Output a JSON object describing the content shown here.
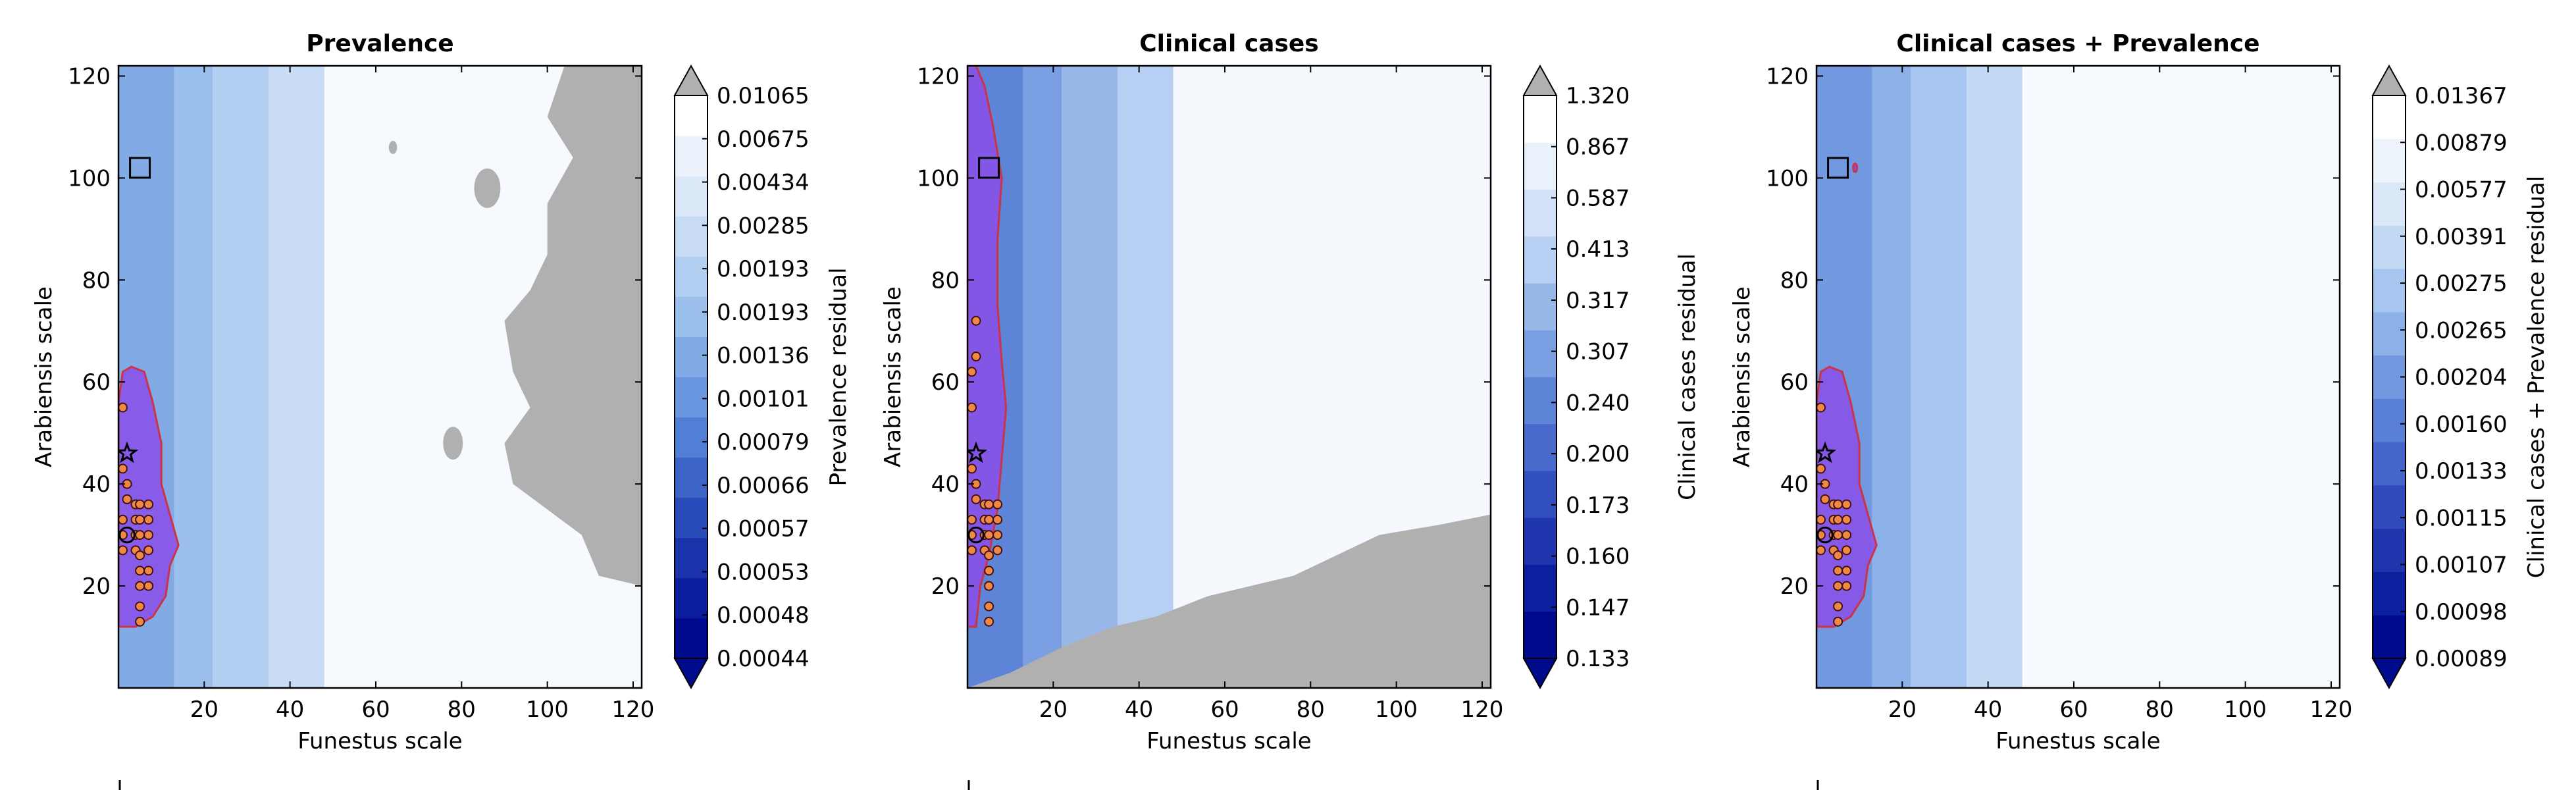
{
  "colors": {
    "grey_region": "#b0b0b0",
    "contour_line": "#cc3344",
    "best_fit_fill": "#8a4ee8"
  },
  "chart_data": [
    {
      "type": "heatmap",
      "title": "Prevalence",
      "xlabel": "Funestus scale",
      "ylabel": "Arabiensis scale",
      "xlim": [
        0,
        122
      ],
      "ylim": [
        0,
        122
      ],
      "xticks": [
        "20",
        "40",
        "60",
        "80",
        "100",
        "120"
      ],
      "yticks": [
        "20",
        "40",
        "60",
        "80",
        "100",
        "120"
      ],
      "colorbar": {
        "label": "Prevalence residual",
        "levels": [
          "0.00044",
          "0.00048",
          "0.00053",
          "0.00057",
          "0.00066",
          "0.00079",
          "0.00101",
          "0.00136",
          "0.00193",
          "0.00193",
          "0.00285",
          "0.00434",
          "0.00675",
          "0.01065"
        ],
        "colors": [
          "#000a8c",
          "#0a1d9c",
          "#1a33aa",
          "#2a4cba",
          "#3d65c8",
          "#527fd6",
          "#6997e0",
          "#82abe6",
          "#9bbfec",
          "#b2cff1",
          "#c8ddf5",
          "#dce9f8",
          "#ecf2fb",
          "#ffffff"
        ],
        "extend": "both"
      },
      "legend_placement": "bottom-left",
      "markers": {
        "star": [
          2,
          46
        ],
        "square": [
          5,
          102
        ],
        "circle_large": [
          2,
          30
        ],
        "circles_small": [
          [
            1,
            30
          ],
          [
            1,
            27
          ],
          [
            1,
            33
          ],
          [
            2,
            37
          ],
          [
            2,
            40
          ],
          [
            1,
            43
          ],
          [
            4,
            36
          ],
          [
            4,
            33
          ],
          [
            4,
            30
          ],
          [
            4,
            27
          ],
          [
            5,
            36
          ],
          [
            5,
            33
          ],
          [
            5,
            30
          ],
          [
            5,
            26
          ],
          [
            5,
            23
          ],
          [
            5,
            20
          ],
          [
            5,
            16
          ],
          [
            5,
            13
          ],
          [
            7,
            36
          ],
          [
            7,
            33
          ],
          [
            7,
            30
          ],
          [
            7,
            27
          ],
          [
            7,
            23
          ],
          [
            7,
            20
          ],
          [
            1,
            55
          ]
        ]
      }
    },
    {
      "type": "heatmap",
      "title": "Clinical cases",
      "xlabel": "Funestus scale",
      "ylabel": "Arabiensis scale",
      "xlim": [
        0,
        122
      ],
      "ylim": [
        0,
        122
      ],
      "xticks": [
        "20",
        "40",
        "60",
        "80",
        "100",
        "120"
      ],
      "yticks": [
        "20",
        "40",
        "60",
        "80",
        "100",
        "120"
      ],
      "colorbar": {
        "label": "Clinical cases residual",
        "levels": [
          "0.133",
          "0.147",
          "0.160",
          "0.173",
          "0.200",
          "0.240",
          "0.307",
          "0.317",
          "0.413",
          "0.587",
          "0.867",
          "1.320"
        ],
        "colors": [
          "#000a8c",
          "#0c1f9e",
          "#2036ae",
          "#324fbe",
          "#4769cc",
          "#5e84d8",
          "#7a9fe2",
          "#98b8ea",
          "#b6cff2",
          "#d2e1f7",
          "#e9f1fb",
          "#ffffff"
        ],
        "extend": "both"
      },
      "legend_placement": "bottom-left",
      "markers": {
        "star": [
          2,
          46
        ],
        "square": [
          5,
          102
        ],
        "circle_large": [
          2,
          30
        ],
        "circles_small": [
          [
            1,
            30
          ],
          [
            1,
            27
          ],
          [
            1,
            33
          ],
          [
            2,
            37
          ],
          [
            2,
            40
          ],
          [
            1,
            43
          ],
          [
            4,
            36
          ],
          [
            4,
            33
          ],
          [
            4,
            30
          ],
          [
            4,
            27
          ],
          [
            5,
            36
          ],
          [
            5,
            33
          ],
          [
            5,
            30
          ],
          [
            5,
            26
          ],
          [
            5,
            23
          ],
          [
            5,
            20
          ],
          [
            5,
            16
          ],
          [
            5,
            13
          ],
          [
            7,
            36
          ],
          [
            7,
            33
          ],
          [
            7,
            30
          ],
          [
            7,
            27
          ],
          [
            1,
            55
          ],
          [
            1,
            62
          ],
          [
            2,
            65
          ],
          [
            2,
            72
          ]
        ]
      }
    },
    {
      "type": "heatmap",
      "title": "Clinical cases + Prevalence",
      "xlabel": "Funestus scale",
      "ylabel": "Arabiensis scale",
      "xlim": [
        0,
        122
      ],
      "ylim": [
        0,
        122
      ],
      "xticks": [
        "20",
        "40",
        "60",
        "80",
        "100",
        "120"
      ],
      "yticks": [
        "20",
        "40",
        "60",
        "80",
        "100",
        "120"
      ],
      "colorbar": {
        "label": "Clinical cases + Prevalence residual",
        "levels": [
          "0.00089",
          "0.00098",
          "0.00107",
          "0.00115",
          "0.00133",
          "0.00160",
          "0.00204",
          "0.00265",
          "0.00275",
          "0.00391",
          "0.00577",
          "0.00879",
          "0.01367"
        ],
        "colors": [
          "#000a8c",
          "#0c1f9e",
          "#1f34ad",
          "#304cbc",
          "#4466ca",
          "#5a80d6",
          "#7299e0",
          "#8cb0e8",
          "#a7c6ef",
          "#c2daf4",
          "#dae8f8",
          "#eef4fc",
          "#ffffff"
        ],
        "extend": "both"
      },
      "legend_placement": "bottom-left",
      "markers": {
        "star": [
          2,
          46
        ],
        "square": [
          5,
          102
        ],
        "circle_large": [
          2,
          30
        ],
        "circles_small": [
          [
            1,
            30
          ],
          [
            1,
            27
          ],
          [
            1,
            33
          ],
          [
            2,
            37
          ],
          [
            2,
            40
          ],
          [
            1,
            43
          ],
          [
            4,
            36
          ],
          [
            4,
            33
          ],
          [
            4,
            30
          ],
          [
            4,
            27
          ],
          [
            5,
            36
          ],
          [
            5,
            33
          ],
          [
            5,
            30
          ],
          [
            5,
            26
          ],
          [
            5,
            23
          ],
          [
            5,
            20
          ],
          [
            5,
            16
          ],
          [
            5,
            13
          ],
          [
            7,
            36
          ],
          [
            7,
            33
          ],
          [
            7,
            30
          ],
          [
            7,
            27
          ],
          [
            7,
            23
          ],
          [
            7,
            20
          ],
          [
            1,
            55
          ]
        ]
      }
    }
  ]
}
